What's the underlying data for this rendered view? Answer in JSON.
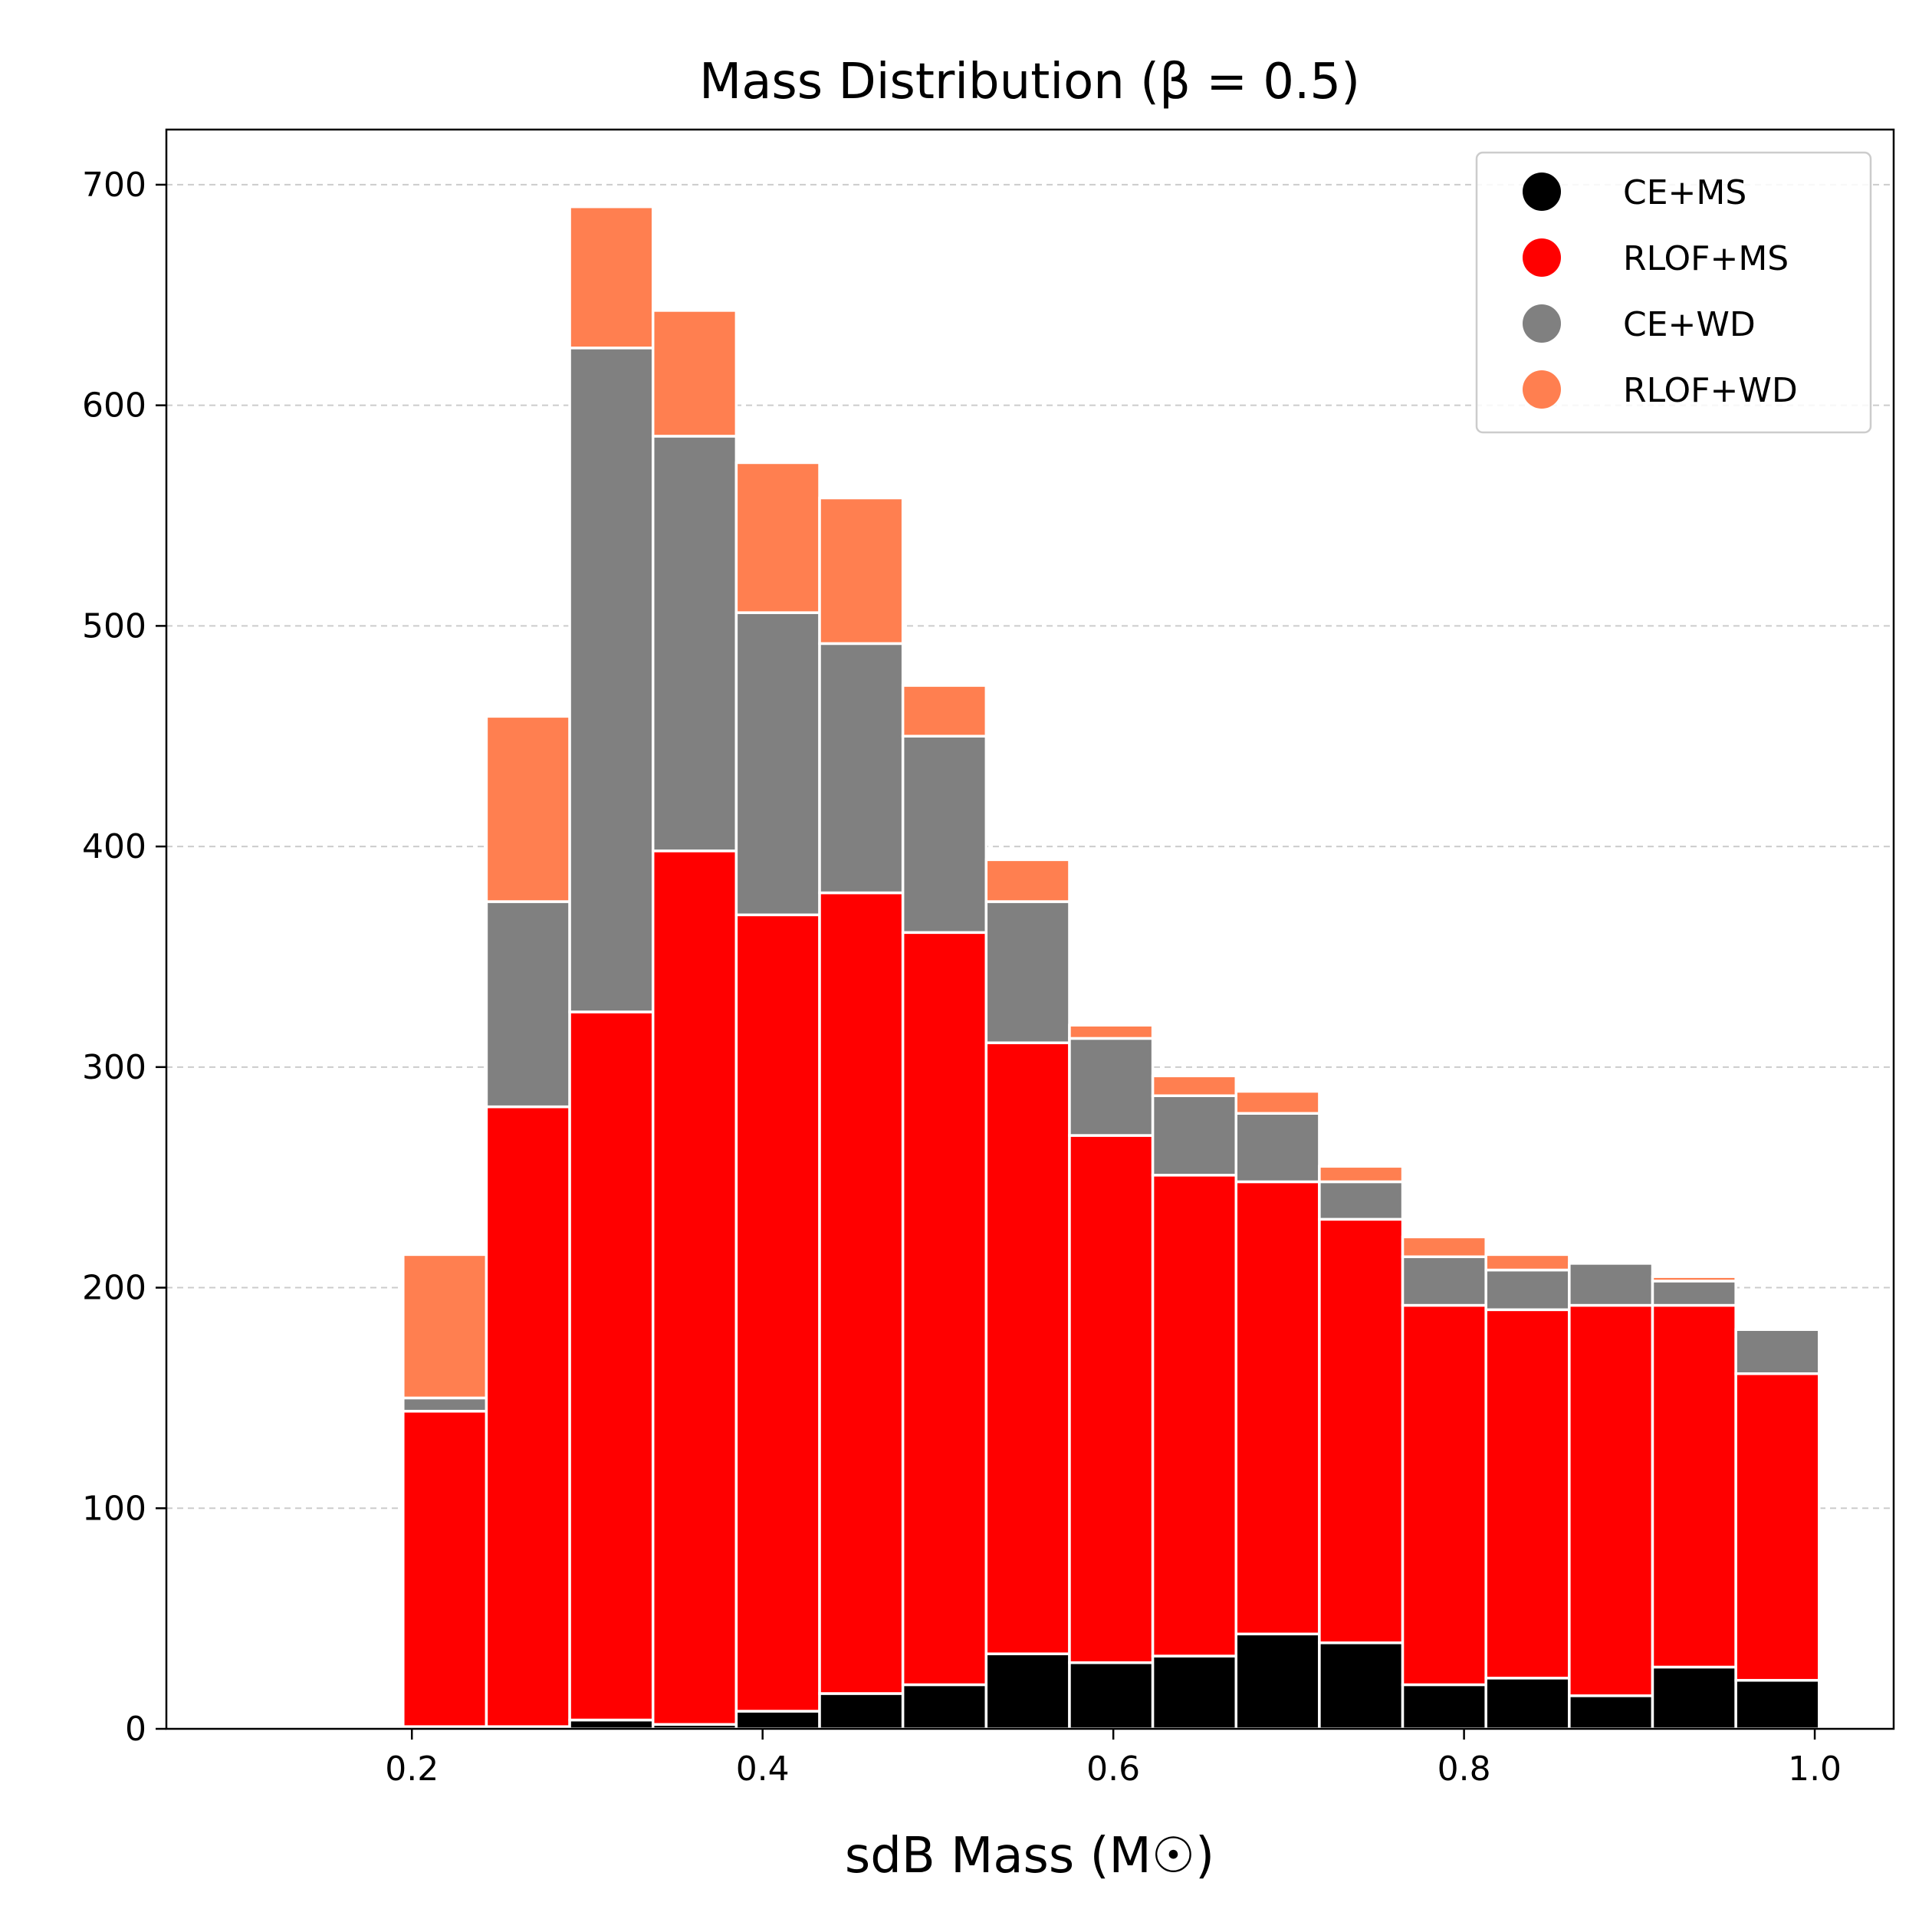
{
  "chart_data": {
    "type": "bar",
    "stacked": true,
    "title": "Mass Distribution (β = 0.5)",
    "xlabel": "sdB Mass (M☉)",
    "ylabel": "",
    "xlim": [
      0.06,
      1.045
    ],
    "ylim": [
      0,
      725
    ],
    "xticks": [
      0.2,
      0.4,
      0.6,
      0.8,
      1.0
    ],
    "xtick_labels": [
      "0.2",
      "0.4",
      "0.6",
      "0.8",
      "1.0"
    ],
    "yticks": [
      0,
      100,
      200,
      300,
      400,
      500,
      600,
      700
    ],
    "ytick_labels": [
      "0",
      "100",
      "200",
      "300",
      "400",
      "500",
      "600",
      "700"
    ],
    "grid": "y-dashed",
    "legend_position": "top-right",
    "bin_edges": [
      0.195,
      0.2425,
      0.29,
      0.3375,
      0.385,
      0.4325,
      0.48,
      0.5275,
      0.575,
      0.6225,
      0.67,
      0.7175,
      0.765,
      0.8125,
      0.86,
      0.9075,
      0.955,
      1.0025
    ],
    "series": [
      {
        "name": "CE+MS",
        "color": "#000000",
        "values": [
          1,
          1,
          4,
          2,
          8,
          16,
          20,
          34,
          30,
          33,
          43,
          39,
          20,
          23,
          15,
          28,
          22
        ]
      },
      {
        "name": "RLOF+MS",
        "color": "#ff0000",
        "values": [
          143,
          281,
          321,
          396,
          361,
          363,
          341,
          277,
          239,
          218,
          205,
          192,
          172,
          167,
          177,
          164,
          139
        ]
      },
      {
        "name": "CE+WD",
        "color": "#808080",
        "values": [
          6,
          93,
          301,
          188,
          137,
          113,
          89,
          64,
          44,
          36,
          31,
          17,
          22,
          18,
          19,
          11,
          20
        ]
      },
      {
        "name": "RLOF+WD",
        "color": "#ff7f50",
        "values": [
          65,
          84,
          64,
          57,
          68,
          66,
          23,
          19,
          6,
          9,
          10,
          7,
          9,
          7,
          0,
          2,
          0
        ]
      }
    ]
  }
}
